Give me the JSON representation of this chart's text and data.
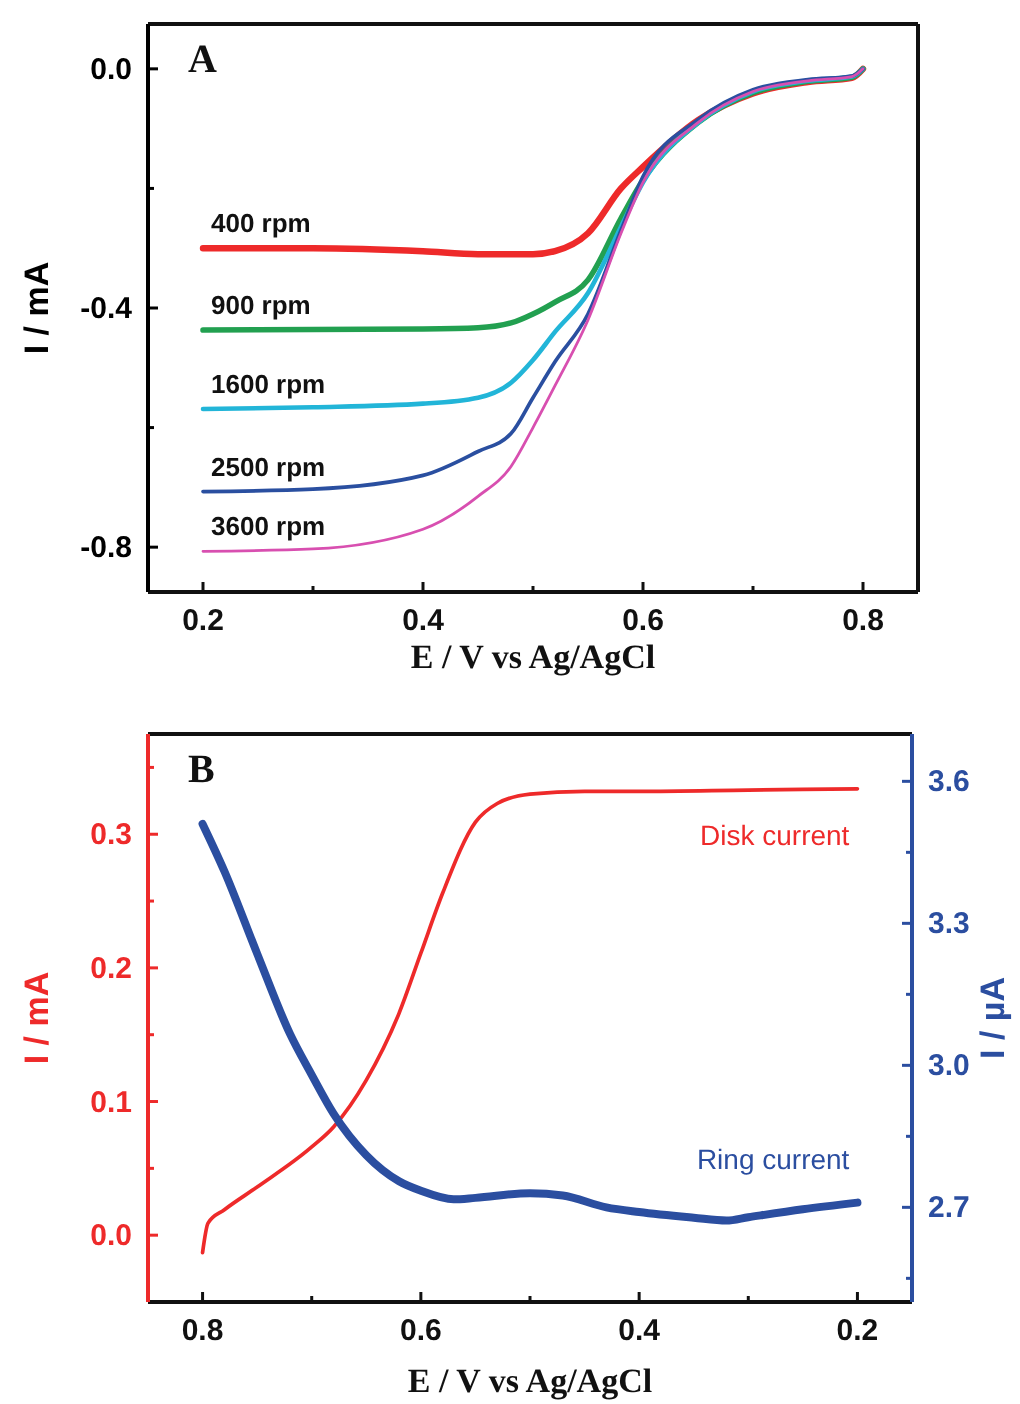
{
  "chart_data": [
    {
      "type": "line",
      "title": "A",
      "xlabel": "E / V vs Ag/AgCl",
      "ylabel": "I / mA",
      "xlim": [
        0.15,
        0.85
      ],
      "ylim": [
        -0.875,
        0.075
      ],
      "xticks": [
        0.2,
        {
          "value": 0.3,
          "label": null
        },
        0.4,
        {
          "value": 0.5,
          "label": null
        },
        0.6,
        {
          "value": 0.7,
          "label": null
        },
        0.8
      ],
      "yticks": [
        {
          "value": 0,
          "label": "0.0"
        },
        {
          "value": -0.2,
          "label": null
        },
        -0.4,
        {
          "value": -0.6,
          "label": null
        },
        -0.8
      ],
      "x": [
        0.2,
        0.3,
        0.4,
        0.45,
        0.48,
        0.5,
        0.52,
        0.55,
        0.58,
        0.6,
        0.65,
        0.7,
        0.75,
        0.79,
        0.8
      ],
      "series": [
        {
          "name": "400 rpm",
          "color": "#ee2a2a",
          "values": [
            -0.3,
            -0.3,
            -0.305,
            -0.31,
            -0.31,
            -0.31,
            -0.305,
            -0.275,
            -0.2,
            -0.164,
            -0.086,
            -0.041,
            -0.022,
            -0.015,
            0.0
          ]
        },
        {
          "name": "900 rpm",
          "color": "#22a050",
          "values": [
            -0.437,
            -0.436,
            -0.435,
            -0.433,
            -0.425,
            -0.41,
            -0.39,
            -0.353,
            -0.25,
            -0.186,
            -0.09,
            -0.04,
            -0.021,
            -0.014,
            0.0
          ]
        },
        {
          "name": "1600 rpm",
          "color": "#22b5d8",
          "values": [
            -0.569,
            -0.566,
            -0.56,
            -0.55,
            -0.525,
            -0.487,
            -0.44,
            -0.375,
            -0.264,
            -0.19,
            -0.09,
            -0.038,
            -0.02,
            -0.013,
            0.0
          ]
        },
        {
          "name": "2500 rpm",
          "color": "#2a4fa0",
          "values": [
            -0.707,
            -0.703,
            -0.68,
            -0.64,
            -0.61,
            -0.55,
            -0.49,
            -0.41,
            -0.27,
            -0.18,
            -0.085,
            -0.035,
            -0.018,
            -0.012,
            0.0
          ]
        },
        {
          "name": "3600 rpm",
          "color": "#d84fb0",
          "values": [
            -0.807,
            -0.803,
            -0.77,
            -0.715,
            -0.665,
            -0.6,
            -0.53,
            -0.42,
            -0.275,
            -0.19,
            -0.09,
            -0.038,
            -0.02,
            -0.013,
            0.0
          ]
        }
      ]
    },
    {
      "type": "line",
      "title": "B",
      "xlabel": "E / V vs Ag/AgCl",
      "ylabel": "I / mA",
      "y2label": "I / µA",
      "xlim": [
        0.85,
        0.15
      ],
      "ylim": [
        -0.05,
        0.375
      ],
      "y2lim": [
        2.5,
        3.7
      ],
      "xticks": [
        0.8,
        {
          "value": 0.7,
          "label": null
        },
        0.6,
        {
          "value": 0.5,
          "label": null
        },
        0.4,
        {
          "value": 0.3,
          "label": null
        },
        0.2
      ],
      "yticks": [
        {
          "value": 0,
          "label": "0.0"
        },
        {
          "value": 0.05,
          "label": null
        },
        0.1,
        {
          "value": 0.15,
          "label": null
        },
        0.2,
        {
          "value": 0.25,
          "label": null
        },
        0.3,
        {
          "value": 0.35,
          "label": null
        }
      ],
      "y2ticks": [
        {
          "value": 2.55,
          "label": null
        },
        2.7,
        {
          "value": 2.85,
          "label": null
        },
        {
          "value": 3.0,
          "label": "3.0"
        },
        {
          "value": 3.15,
          "label": null
        },
        3.3,
        {
          "value": 3.45,
          "label": null
        },
        3.6
      ],
      "series": [
        {
          "name": "Disk current",
          "color": "#ee2a2a",
          "x": [
            0.8,
            0.795,
            0.78,
            0.75,
            0.7,
            0.68,
            0.65,
            0.62,
            0.6,
            0.58,
            0.55,
            0.53,
            0.5,
            0.45,
            0.4,
            0.3,
            0.2
          ],
          "values": [
            -0.013,
            0.009,
            0.019,
            0.036,
            0.066,
            0.081,
            0.116,
            0.166,
            0.211,
            0.256,
            0.309,
            0.323,
            0.33,
            0.332,
            0.332,
            0.333,
            0.334
          ]
        },
        {
          "name": "Ring current",
          "color": "#2b4ea0",
          "axis": "y2",
          "x": [
            0.8,
            0.78,
            0.75,
            0.72,
            0.7,
            0.68,
            0.65,
            0.62,
            0.6,
            0.57,
            0.55,
            0.5,
            0.47,
            0.43,
            0.4,
            0.35,
            0.32,
            0.3,
            0.25,
            0.2
          ],
          "values": [
            3.51,
            3.41,
            3.236,
            3.067,
            2.98,
            2.898,
            2.81,
            2.755,
            2.735,
            2.717,
            2.72,
            2.73,
            2.725,
            2.7,
            2.69,
            2.678,
            2.672,
            2.679,
            2.696,
            2.71
          ]
        }
      ]
    }
  ]
}
